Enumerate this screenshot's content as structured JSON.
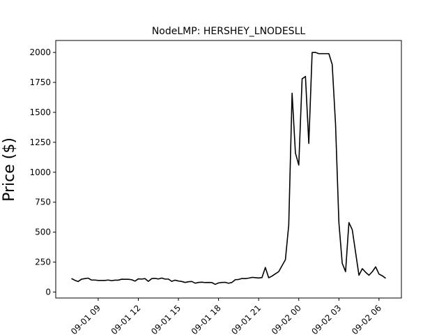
{
  "chart_data": {
    "type": "line",
    "title": "NodeLMP: HERSHEY_LNODESLL",
    "xlabel": "",
    "ylabel": "Price ($)",
    "x_start": "2022-09-01 07:00",
    "x_step_hours": 0.25,
    "x_ticks": [
      "09-01 09",
      "09-01 12",
      "09-01 15",
      "09-01 18",
      "09-01 21",
      "09-02 00",
      "09-02 03",
      "09-02 06"
    ],
    "x_tick_labels": [
      "09-01 09",
      "09-01 12",
      "09-01 15",
      "09-01 18",
      "09-01 21",
      "09-02 00",
      "09-02 03",
      "09-02 06"
    ],
    "y_ticks": [
      0,
      250,
      500,
      750,
      1000,
      1250,
      1500,
      1750,
      2000
    ],
    "y_tick_labels": [
      "0",
      "250",
      "500",
      "750",
      "1000",
      "1250",
      "1500",
      "1750",
      "2000"
    ],
    "ylim": [
      -50,
      2100
    ],
    "grid": false,
    "line_color": "#000000",
    "series": [
      {
        "name": "",
        "values": [
          113,
          98,
          88,
          107,
          112,
          116,
          100,
          100,
          97,
          97,
          97,
          100,
          95,
          99,
          99,
          107,
          106,
          106,
          103,
          91,
          110,
          108,
          112,
          89,
          112,
          114,
          109,
          117,
          108,
          108,
          89,
          99,
          92,
          88,
          80,
          86,
          88,
          74,
          80,
          82,
          79,
          80,
          79,
          64,
          76,
          80,
          81,
          73,
          80,
          103,
          105,
          113,
          112,
          116,
          122,
          120,
          117,
          121,
          205,
          119,
          133,
          152,
          170,
          220,
          270,
          560,
          1660,
          1160,
          1060,
          1780,
          1800,
          1240,
          2000,
          2000,
          1990,
          1990,
          1990,
          1990,
          1900,
          1400,
          580,
          240,
          170,
          580,
          520,
          330,
          140,
          195,
          165,
          140,
          170,
          210,
          150,
          135,
          115
        ]
      }
    ]
  }
}
